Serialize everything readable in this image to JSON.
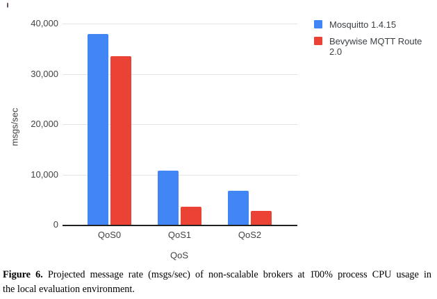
{
  "artifact": {
    "description": "tiny stray glyph mark at top-left corner"
  },
  "chart_data": {
    "type": "bar",
    "title": "",
    "categories": [
      "QoS0",
      "QoS1",
      "QoS2"
    ],
    "series": [
      {
        "name": "Mosquitto 1.4.15",
        "color": "#4285f4",
        "values": [
          38000,
          10700,
          6700
        ]
      },
      {
        "name": "Bevywise MQTT Route 2.0",
        "color": "#ea4335",
        "values": [
          33500,
          3600,
          2700
        ]
      }
    ],
    "xlabel": "QoS",
    "ylabel": "msgs/sec",
    "ylim": [
      0,
      40000
    ],
    "yticks": [
      {
        "label": "0",
        "value": 0
      },
      {
        "label": "10,000",
        "value": 10000
      },
      {
        "label": "20,000",
        "value": 20000
      },
      {
        "label": "30,000",
        "value": 30000
      },
      {
        "label": "40,000",
        "value": 40000
      }
    ],
    "grid": true,
    "legend_position": "right"
  },
  "caption": {
    "label": "Figure 6.",
    "lines": [
      "Projected message rate (msgs/sec) of non-scalable brokers at 1̄00% process CPU usage in",
      "the local evaluation environment."
    ]
  }
}
